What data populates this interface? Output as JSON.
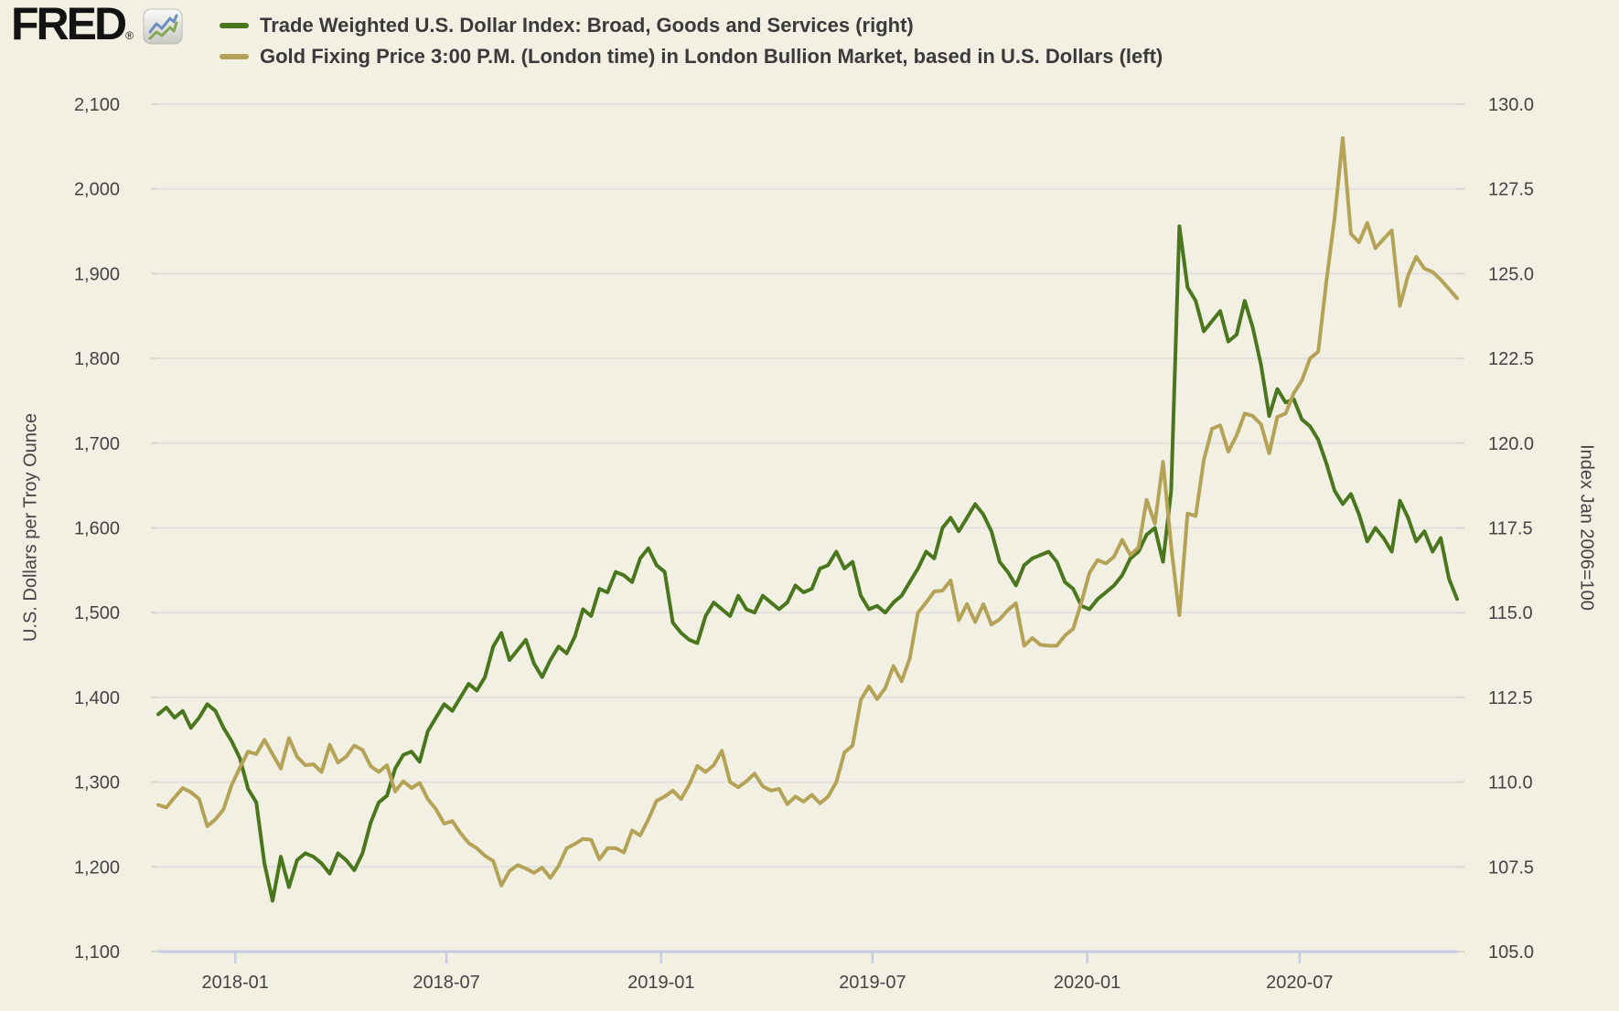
{
  "header": {
    "logo_text": "FRED",
    "logo_reg": "®",
    "legend": [
      {
        "label": "Trade Weighted U.S. Dollar Index: Broad, Goods and Services (right)",
        "color": "#4a761d"
      },
      {
        "label": "Gold Fixing Price 3:00 P.M. (London time) in London Bullion Market, based in U.S. Dollars (left)",
        "color": "#b4a356"
      }
    ]
  },
  "chart_data": {
    "type": "line",
    "background_color": "#f2efe3",
    "gridline_color": "#e1e1de",
    "axis_line_color": "#c5cce3",
    "tick_stub_color": "#d8d7cf",
    "tick_text_color": "#444444",
    "x_start_date": "2017-10-27",
    "x_end_date": "2020-11-13",
    "interval_days": 7,
    "x_ticks": [
      {
        "label": "2018-01",
        "f": 0.0593
      },
      {
        "label": "2018-07",
        "f": 0.2219
      },
      {
        "label": "2019-01",
        "f": 0.3872
      },
      {
        "label": "2019-07",
        "f": 0.5499
      },
      {
        "label": "2020-01",
        "f": 0.7152
      },
      {
        "label": "2020-07",
        "f": 0.8787
      }
    ],
    "left_axis": {
      "title": "U.S. Dollars per Troy Ounce",
      "min": 1100,
      "max": 2100,
      "step": 100,
      "tick_labels": [
        "2,100",
        "2,000",
        "1,900",
        "1,800",
        "1,700",
        "1,600",
        "1,500",
        "1,400",
        "1,300",
        "1,200",
        "1,100"
      ]
    },
    "right_axis": {
      "title": "Index Jan 2006=100",
      "min": 105,
      "max": 130,
      "step": 2.5,
      "tick_labels": [
        "130.0",
        "127.5",
        "125.0",
        "122.5",
        "120.0",
        "117.5",
        "115.0",
        "112.5",
        "110.0",
        "107.5",
        "105.0"
      ]
    },
    "series": [
      {
        "name": "Trade Weighted U.S. Dollar Index: Broad, Goods and Services",
        "axis": "right",
        "color": "#4a761d",
        "values": [
          112.0,
          112.2,
          111.9,
          112.1,
          111.6,
          111.9,
          112.3,
          112.1,
          111.6,
          111.2,
          110.7,
          109.8,
          109.4,
          107.6,
          106.5,
          107.8,
          106.9,
          107.7,
          107.9,
          107.8,
          107.6,
          107.3,
          107.9,
          107.7,
          107.4,
          107.9,
          108.8,
          109.4,
          109.6,
          110.4,
          110.8,
          110.9,
          110.6,
          111.5,
          111.9,
          112.3,
          112.1,
          112.5,
          112.9,
          112.7,
          113.1,
          114.0,
          114.4,
          113.6,
          113.9,
          114.2,
          113.5,
          113.1,
          113.6,
          114.0,
          113.8,
          114.3,
          115.1,
          114.9,
          115.7,
          115.6,
          116.2,
          116.1,
          115.9,
          116.6,
          116.9,
          116.4,
          116.2,
          114.7,
          114.4,
          114.2,
          114.1,
          114.9,
          115.3,
          115.1,
          114.9,
          115.5,
          115.1,
          115.0,
          115.5,
          115.3,
          115.1,
          115.3,
          115.8,
          115.6,
          115.7,
          116.3,
          116.4,
          116.8,
          116.3,
          116.5,
          115.5,
          115.1,
          115.2,
          115.0,
          115.3,
          115.5,
          115.9,
          116.3,
          116.8,
          116.6,
          117.5,
          117.8,
          117.4,
          117.8,
          118.2,
          117.9,
          117.4,
          116.5,
          116.2,
          115.8,
          116.4,
          116.6,
          116.7,
          116.8,
          116.5,
          115.9,
          115.7,
          115.2,
          115.1,
          115.4,
          115.6,
          115.8,
          116.1,
          116.6,
          116.8,
          117.3,
          117.5,
          116.5,
          118.6,
          126.4,
          124.6,
          124.2,
          123.3,
          123.6,
          123.9,
          123.0,
          123.2,
          124.2,
          123.4,
          122.3,
          120.8,
          121.6,
          121.2,
          121.3,
          120.7,
          120.5,
          120.1,
          119.4,
          118.6,
          118.2,
          118.5,
          117.9,
          117.1,
          117.5,
          117.2,
          116.8,
          118.3,
          117.8,
          117.1,
          117.4,
          116.8,
          117.2,
          116.0,
          115.4
        ]
      },
      {
        "name": "Gold Fixing Price 3:00 P.M. (London time) in London Bullion Market, based in U.S. Dollars",
        "axis": "left",
        "color": "#b4a356",
        "values": [
          1273,
          1270,
          1282,
          1293,
          1288,
          1280,
          1248,
          1256,
          1268,
          1297,
          1317,
          1336,
          1333,
          1350,
          1333,
          1316,
          1352,
          1330,
          1320,
          1321,
          1312,
          1344,
          1323,
          1330,
          1343,
          1338,
          1319,
          1312,
          1320,
          1289,
          1301,
          1293,
          1299,
          1280,
          1268,
          1251,
          1254,
          1240,
          1228,
          1222,
          1213,
          1207,
          1178,
          1195,
          1202,
          1198,
          1193,
          1199,
          1187,
          1201,
          1222,
          1227,
          1233,
          1232,
          1209,
          1222,
          1222,
          1217,
          1243,
          1237,
          1256,
          1278,
          1283,
          1290,
          1280,
          1297,
          1319,
          1312,
          1320,
          1337,
          1300,
          1294,
          1301,
          1310,
          1295,
          1290,
          1292,
          1274,
          1283,
          1277,
          1285,
          1275,
          1283,
          1300,
          1335,
          1343,
          1397,
          1413,
          1398,
          1411,
          1437,
          1419,
          1446,
          1500,
          1512,
          1525,
          1526,
          1538,
          1491,
          1510,
          1489,
          1510,
          1486,
          1492,
          1503,
          1511,
          1461,
          1470,
          1462,
          1461,
          1461,
          1473,
          1481,
          1512,
          1547,
          1562,
          1558,
          1566,
          1586,
          1568,
          1577,
          1633,
          1605,
          1678,
          1578,
          1497,
          1617,
          1614,
          1680,
          1717,
          1721,
          1690,
          1709,
          1735,
          1732,
          1722,
          1688,
          1731,
          1735,
          1759,
          1774,
          1800,
          1808,
          1891,
          1965,
          2060,
          1947,
          1937,
          1960,
          1930,
          1941,
          1951,
          1862,
          1898,
          1920,
          1906,
          1902,
          1893,
          1882,
          1871
        ]
      }
    ]
  }
}
